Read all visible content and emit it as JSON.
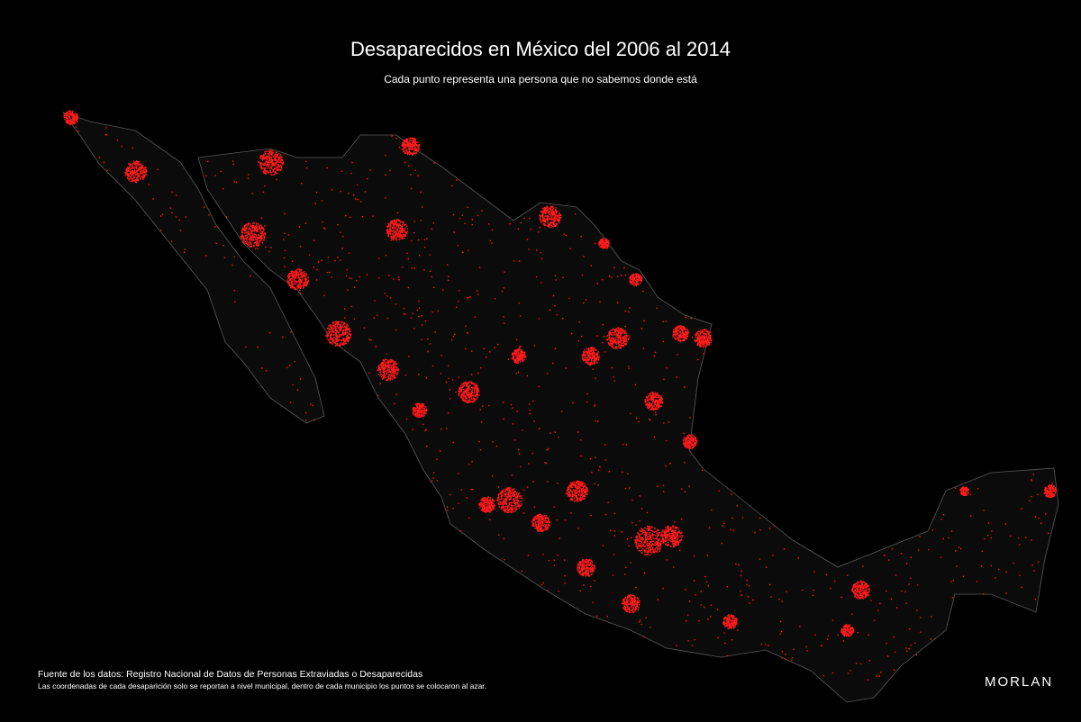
{
  "header": {
    "title": "Desaparecidos en México del 2006 al 2014",
    "subtitle": "Cada punto representa una persona que no sabemos donde está"
  },
  "footer": {
    "source": "Fuente de los datos: Registro Nacional de Datos de Personas Extraviadas o Desaparecidas",
    "note": "Las coordenadas de cada desaparición solo se reportan a nivel municipal, dentro de cada municipio los puntos se colocaron al azar.",
    "logo": "MORLAN"
  }
}
